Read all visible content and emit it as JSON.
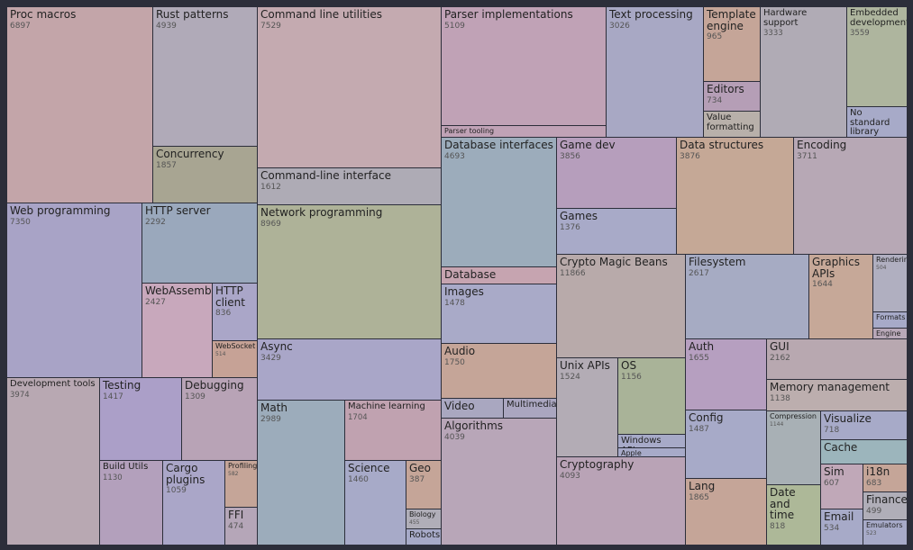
{
  "tiles": [
    {
      "name": "Proc macros",
      "value": 6897
    },
    {
      "name": "Rust patterns",
      "value": 4939
    },
    {
      "name": "Concurrency",
      "value": 1857
    },
    {
      "name": "Command line utilities",
      "value": 7529
    },
    {
      "name": "Command-line interface",
      "value": 1612
    },
    {
      "name": "Parser implementations",
      "value": 5109
    },
    {
      "name": "Parser tooling"
    },
    {
      "name": "Text processing",
      "value": 3026
    },
    {
      "name": "Template engine",
      "value": 965
    },
    {
      "name": "Editors",
      "value": 734
    },
    {
      "name": "Value formatting"
    },
    {
      "name": "Hardware support",
      "value": 3333
    },
    {
      "name": "Embedded development",
      "value": 3559
    },
    {
      "name": "No standard library"
    },
    {
      "name": "Web programming",
      "value": 7350
    },
    {
      "name": "HTTP server",
      "value": 2292
    },
    {
      "name": "WebAssembly",
      "value": 2427
    },
    {
      "name": "HTTP client",
      "value": 836
    },
    {
      "name": "WebSocket",
      "value": 514
    },
    {
      "name": "Network programming",
      "value": 8969
    },
    {
      "name": "Async",
      "value": 3429
    },
    {
      "name": "Database interfaces",
      "value": 4693
    },
    {
      "name": "Database"
    },
    {
      "name": "Images",
      "value": 1478
    },
    {
      "name": "Audio",
      "value": 1750
    },
    {
      "name": "Video"
    },
    {
      "name": "Multimedia"
    },
    {
      "name": "Algorithms",
      "value": 4039
    },
    {
      "name": "Game dev",
      "value": 3856
    },
    {
      "name": "Games",
      "value": 1376
    },
    {
      "name": "Data structures",
      "value": 3876
    },
    {
      "name": "Encoding",
      "value": 3711
    },
    {
      "name": "Crypto Magic Beans",
      "value": 11866
    },
    {
      "name": "Filesystem",
      "value": 2617
    },
    {
      "name": "Graphics APIs",
      "value": 1644
    },
    {
      "name": "Rendering",
      "value": 504
    },
    {
      "name": "Formats"
    },
    {
      "name": "Engine"
    },
    {
      "name": "Unix APIs",
      "value": 1524
    },
    {
      "name": "OS",
      "value": 1156
    },
    {
      "name": "Windows APIs"
    },
    {
      "name": "Apple"
    },
    {
      "name": "Cryptography",
      "value": 4093
    },
    {
      "name": "Auth",
      "value": 1655
    },
    {
      "name": "Config",
      "value": 1487
    },
    {
      "name": "Lang",
      "value": 1865
    },
    {
      "name": "GUI",
      "value": 2162
    },
    {
      "name": "Memory management",
      "value": 1138
    },
    {
      "name": "Compression",
      "value": 1144
    },
    {
      "name": "Date and time",
      "value": 818
    },
    {
      "name": "Visualize",
      "value": 718
    },
    {
      "name": "Cache"
    },
    {
      "name": "Sim",
      "value": 607
    },
    {
      "name": "Email",
      "value": 534
    },
    {
      "name": "i18n",
      "value": 683
    },
    {
      "name": "Finance",
      "value": 499
    },
    {
      "name": "Emulators",
      "value": 523
    },
    {
      "name": "Development tools",
      "value": 3974
    },
    {
      "name": "Testing",
      "value": 1417
    },
    {
      "name": "Debugging",
      "value": 1309
    },
    {
      "name": "Build Utils",
      "value": 1130
    },
    {
      "name": "Cargo plugins",
      "value": 1059
    },
    {
      "name": "Profiling",
      "value": 582
    },
    {
      "name": "FFI",
      "value": 474
    },
    {
      "name": "Math",
      "value": 2989
    },
    {
      "name": "Machine learning",
      "value": 1704
    },
    {
      "name": "Science",
      "value": 1460
    },
    {
      "name": "Geo",
      "value": 387
    },
    {
      "name": "Biology",
      "value": 455
    },
    {
      "name": "Robots"
    }
  ]
}
